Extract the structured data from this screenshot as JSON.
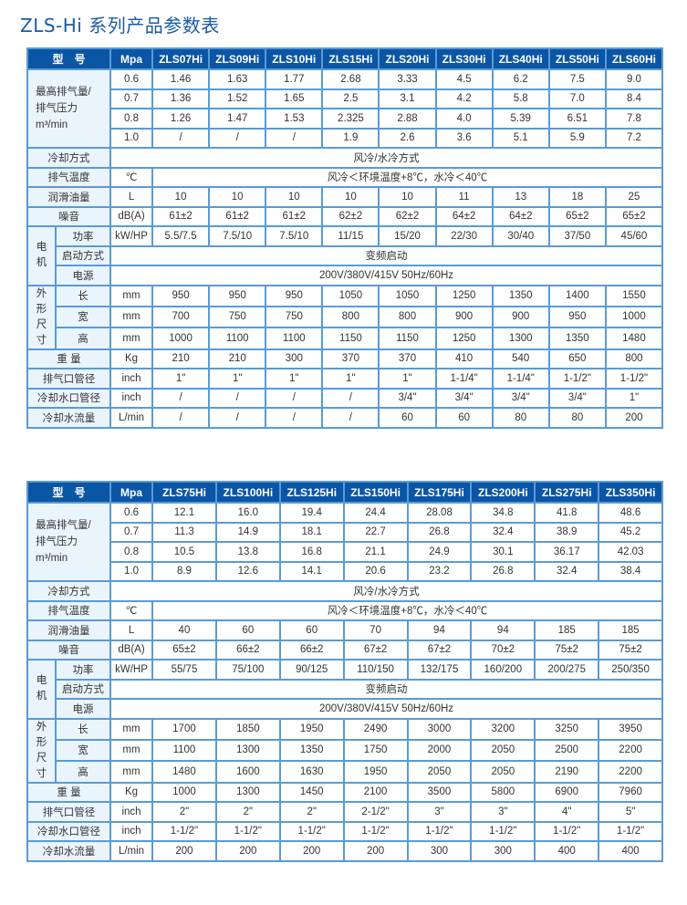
{
  "title": "ZLS-Hi 系列产品参数表",
  "colors": {
    "header_bg": "#0b55a5",
    "label_bg": "#eaf4fc",
    "border": "#5a9ad6",
    "title": "#1a5aa8"
  },
  "tables": [
    {
      "header": {
        "label": "型　号",
        "unit": "Mpa",
        "models": [
          "ZLS07Hi",
          "ZLS09Hi",
          "ZLS10Hi",
          "ZLS15Hi",
          "ZLS20Hi",
          "ZLS30Hi",
          "ZLS40Hi",
          "ZLS50Hi",
          "ZLS60Hi"
        ]
      },
      "airflow": {
        "label_line1": "最高排气量/",
        "label_line2": "排气压力",
        "label_unit": "m³/min",
        "rows": [
          {
            "pressure": "0.6",
            "values": [
              "1.46",
              "1.63",
              "1.77",
              "2.68",
              "3.33",
              "4.5",
              "6.2",
              "7.5",
              "9.0"
            ]
          },
          {
            "pressure": "0.7",
            "values": [
              "1.36",
              "1.52",
              "1.65",
              "2.5",
              "3.1",
              "4.2",
              "5.8",
              "7.0",
              "8.4"
            ]
          },
          {
            "pressure": "0.8",
            "values": [
              "1.26",
              "1.47",
              "1.53",
              "2.325",
              "2.88",
              "4.0",
              "5.39",
              "6.51",
              "7.8"
            ]
          },
          {
            "pressure": "1.0",
            "values": [
              "/",
              "/",
              "/",
              "1.9",
              "2.6",
              "3.6",
              "5.1",
              "5.9",
              "7.2"
            ]
          }
        ]
      },
      "cooling": {
        "label": "冷却方式",
        "value": "风冷/水冷方式"
      },
      "exhaust_temp": {
        "label": "排气温度",
        "unit": "℃",
        "value": "风冷＜环境温度+8℃，水冷＜40℃"
      },
      "oil": {
        "label": "润滑油量",
        "unit": "L",
        "values": [
          "10",
          "10",
          "10",
          "10",
          "10",
          "11",
          "13",
          "18",
          "25"
        ]
      },
      "noise": {
        "label": "噪音",
        "unit": "dB(A)",
        "values": [
          "61±2",
          "61±2",
          "61±2",
          "62±2",
          "62±2",
          "64±2",
          "64±2",
          "65±2",
          "65±2"
        ]
      },
      "motor": {
        "label": "电机",
        "power": {
          "label": "功率",
          "unit": "kW/HP",
          "values": [
            "5.5/7.5",
            "7.5/10",
            "7.5/10",
            "11/15",
            "15/20",
            "22/30",
            "30/40",
            "37/50",
            "45/60"
          ]
        },
        "start": {
          "label": "启动方式",
          "value": "变频启动"
        },
        "supply": {
          "label": "电源",
          "value": "200V/380V/415V 50Hz/60Hz"
        }
      },
      "dimensions": {
        "label": "外形尺寸",
        "rows": [
          {
            "label": "长",
            "unit": "mm",
            "values": [
              "950",
              "950",
              "950",
              "1050",
              "1050",
              "1250",
              "1350",
              "1400",
              "1550"
            ]
          },
          {
            "label": "宽",
            "unit": "mm",
            "values": [
              "700",
              "750",
              "750",
              "800",
              "800",
              "900",
              "900",
              "950",
              "1000"
            ]
          },
          {
            "label": "高",
            "unit": "mm",
            "values": [
              "1000",
              "1100",
              "1100",
              "1150",
              "1150",
              "1250",
              "1300",
              "1350",
              "1480"
            ]
          }
        ]
      },
      "weight": {
        "label": "重 量",
        "unit": "Kg",
        "values": [
          "210",
          "210",
          "300",
          "370",
          "370",
          "410",
          "540",
          "650",
          "800"
        ]
      },
      "exhaust_pipe": {
        "label": "排气口管径",
        "unit": "inch",
        "values": [
          "1\"",
          "1\"",
          "1\"",
          "1\"",
          "1\"",
          "1-1/4\"",
          "1-1/4\"",
          "1-1/2\"",
          "1-1/2\""
        ]
      },
      "water_pipe": {
        "label": "冷却水口管径",
        "unit": "inch",
        "values": [
          "/",
          "/",
          "/",
          "/",
          "3/4\"",
          "3/4\"",
          "3/4\"",
          "3/4\"",
          "1\""
        ]
      },
      "water_flow": {
        "label": "冷却水流量",
        "unit": "L/min",
        "values": [
          "/",
          "/",
          "/",
          "/",
          "60",
          "60",
          "80",
          "80",
          "200"
        ]
      }
    },
    {
      "header": {
        "label": "型　号",
        "unit": "Mpa",
        "models": [
          "ZLS75Hi",
          "ZLS100Hi",
          "ZLS125Hi",
          "ZLS150Hi",
          "ZLS175Hi",
          "ZLS200Hi",
          "ZLS275Hi",
          "ZLS350Hi"
        ]
      },
      "airflow": {
        "label_line1": "最高排气量/",
        "label_line2": "排气压力",
        "label_unit": "m³/min",
        "rows": [
          {
            "pressure": "0.6",
            "values": [
              "12.1",
              "16.0",
              "19.4",
              "24.4",
              "28.08",
              "34.8",
              "41.8",
              "48.6"
            ]
          },
          {
            "pressure": "0.7",
            "values": [
              "11.3",
              "14.9",
              "18.1",
              "22.7",
              "26.8",
              "32.4",
              "38.9",
              "45.2"
            ]
          },
          {
            "pressure": "0.8",
            "values": [
              "10.5",
              "13.8",
              "16.8",
              "21.1",
              "24.9",
              "30.1",
              "36.17",
              "42.03"
            ]
          },
          {
            "pressure": "1.0",
            "values": [
              "8.9",
              "12.6",
              "14.1",
              "20.6",
              "23.2",
              "26.8",
              "32.4",
              "38.4"
            ]
          }
        ]
      },
      "cooling": {
        "label": "冷却方式",
        "value": "风冷/水冷方式"
      },
      "exhaust_temp": {
        "label": "排气温度",
        "unit": "℃",
        "value": "风冷＜环境温度+8℃，水冷＜40℃"
      },
      "oil": {
        "label": "润滑油量",
        "unit": "L",
        "values": [
          "40",
          "60",
          "60",
          "70",
          "94",
          "94",
          "185",
          "185"
        ]
      },
      "noise": {
        "label": "噪音",
        "unit": "dB(A)",
        "values": [
          "65±2",
          "66±2",
          "66±2",
          "67±2",
          "67±2",
          "70±2",
          "75±2",
          "75±2"
        ]
      },
      "motor": {
        "label": "电机",
        "power": {
          "label": "功率",
          "unit": "kW/HP",
          "values": [
            "55/75",
            "75/100",
            "90/125",
            "110/150",
            "132/175",
            "160/200",
            "200/275",
            "250/350"
          ]
        },
        "start": {
          "label": "启动方式",
          "value": "变频启动"
        },
        "supply": {
          "label": "电源",
          "value": "200V/380V/415V 50Hz/60Hz"
        }
      },
      "dimensions": {
        "label": "外形尺寸",
        "rows": [
          {
            "label": "长",
            "unit": "mm",
            "values": [
              "1700",
              "1850",
              "1950",
              "2490",
              "3000",
              "3200",
              "3250",
              "3950"
            ]
          },
          {
            "label": "宽",
            "unit": "mm",
            "values": [
              "1100",
              "1300",
              "1350",
              "1750",
              "2000",
              "2050",
              "2500",
              "2200"
            ]
          },
          {
            "label": "高",
            "unit": "mm",
            "values": [
              "1480",
              "1600",
              "1630",
              "1950",
              "2050",
              "2050",
              "2190",
              "2200"
            ]
          }
        ]
      },
      "weight": {
        "label": "重 量",
        "unit": "Kg",
        "values": [
          "1000",
          "1300",
          "1450",
          "2100",
          "3500",
          "5800",
          "6900",
          "7960"
        ]
      },
      "exhaust_pipe": {
        "label": "排气口管径",
        "unit": "inch",
        "values": [
          "2\"",
          "2\"",
          "2\"",
          "2-1/2\"",
          "3\"",
          "3\"",
          "4\"",
          "5\""
        ]
      },
      "water_pipe": {
        "label": "冷却水口管径",
        "unit": "inch",
        "values": [
          "1-1/2\"",
          "1-1/2\"",
          "1-1/2\"",
          "1-1/2\"",
          "1-1/2\"",
          "1-1/2\"",
          "1-1/2\"",
          "1-1/2\""
        ]
      },
      "water_flow": {
        "label": "冷却水流量",
        "unit": "L/min",
        "values": [
          "200",
          "200",
          "200",
          "200",
          "300",
          "300",
          "400",
          "400"
        ]
      }
    }
  ]
}
